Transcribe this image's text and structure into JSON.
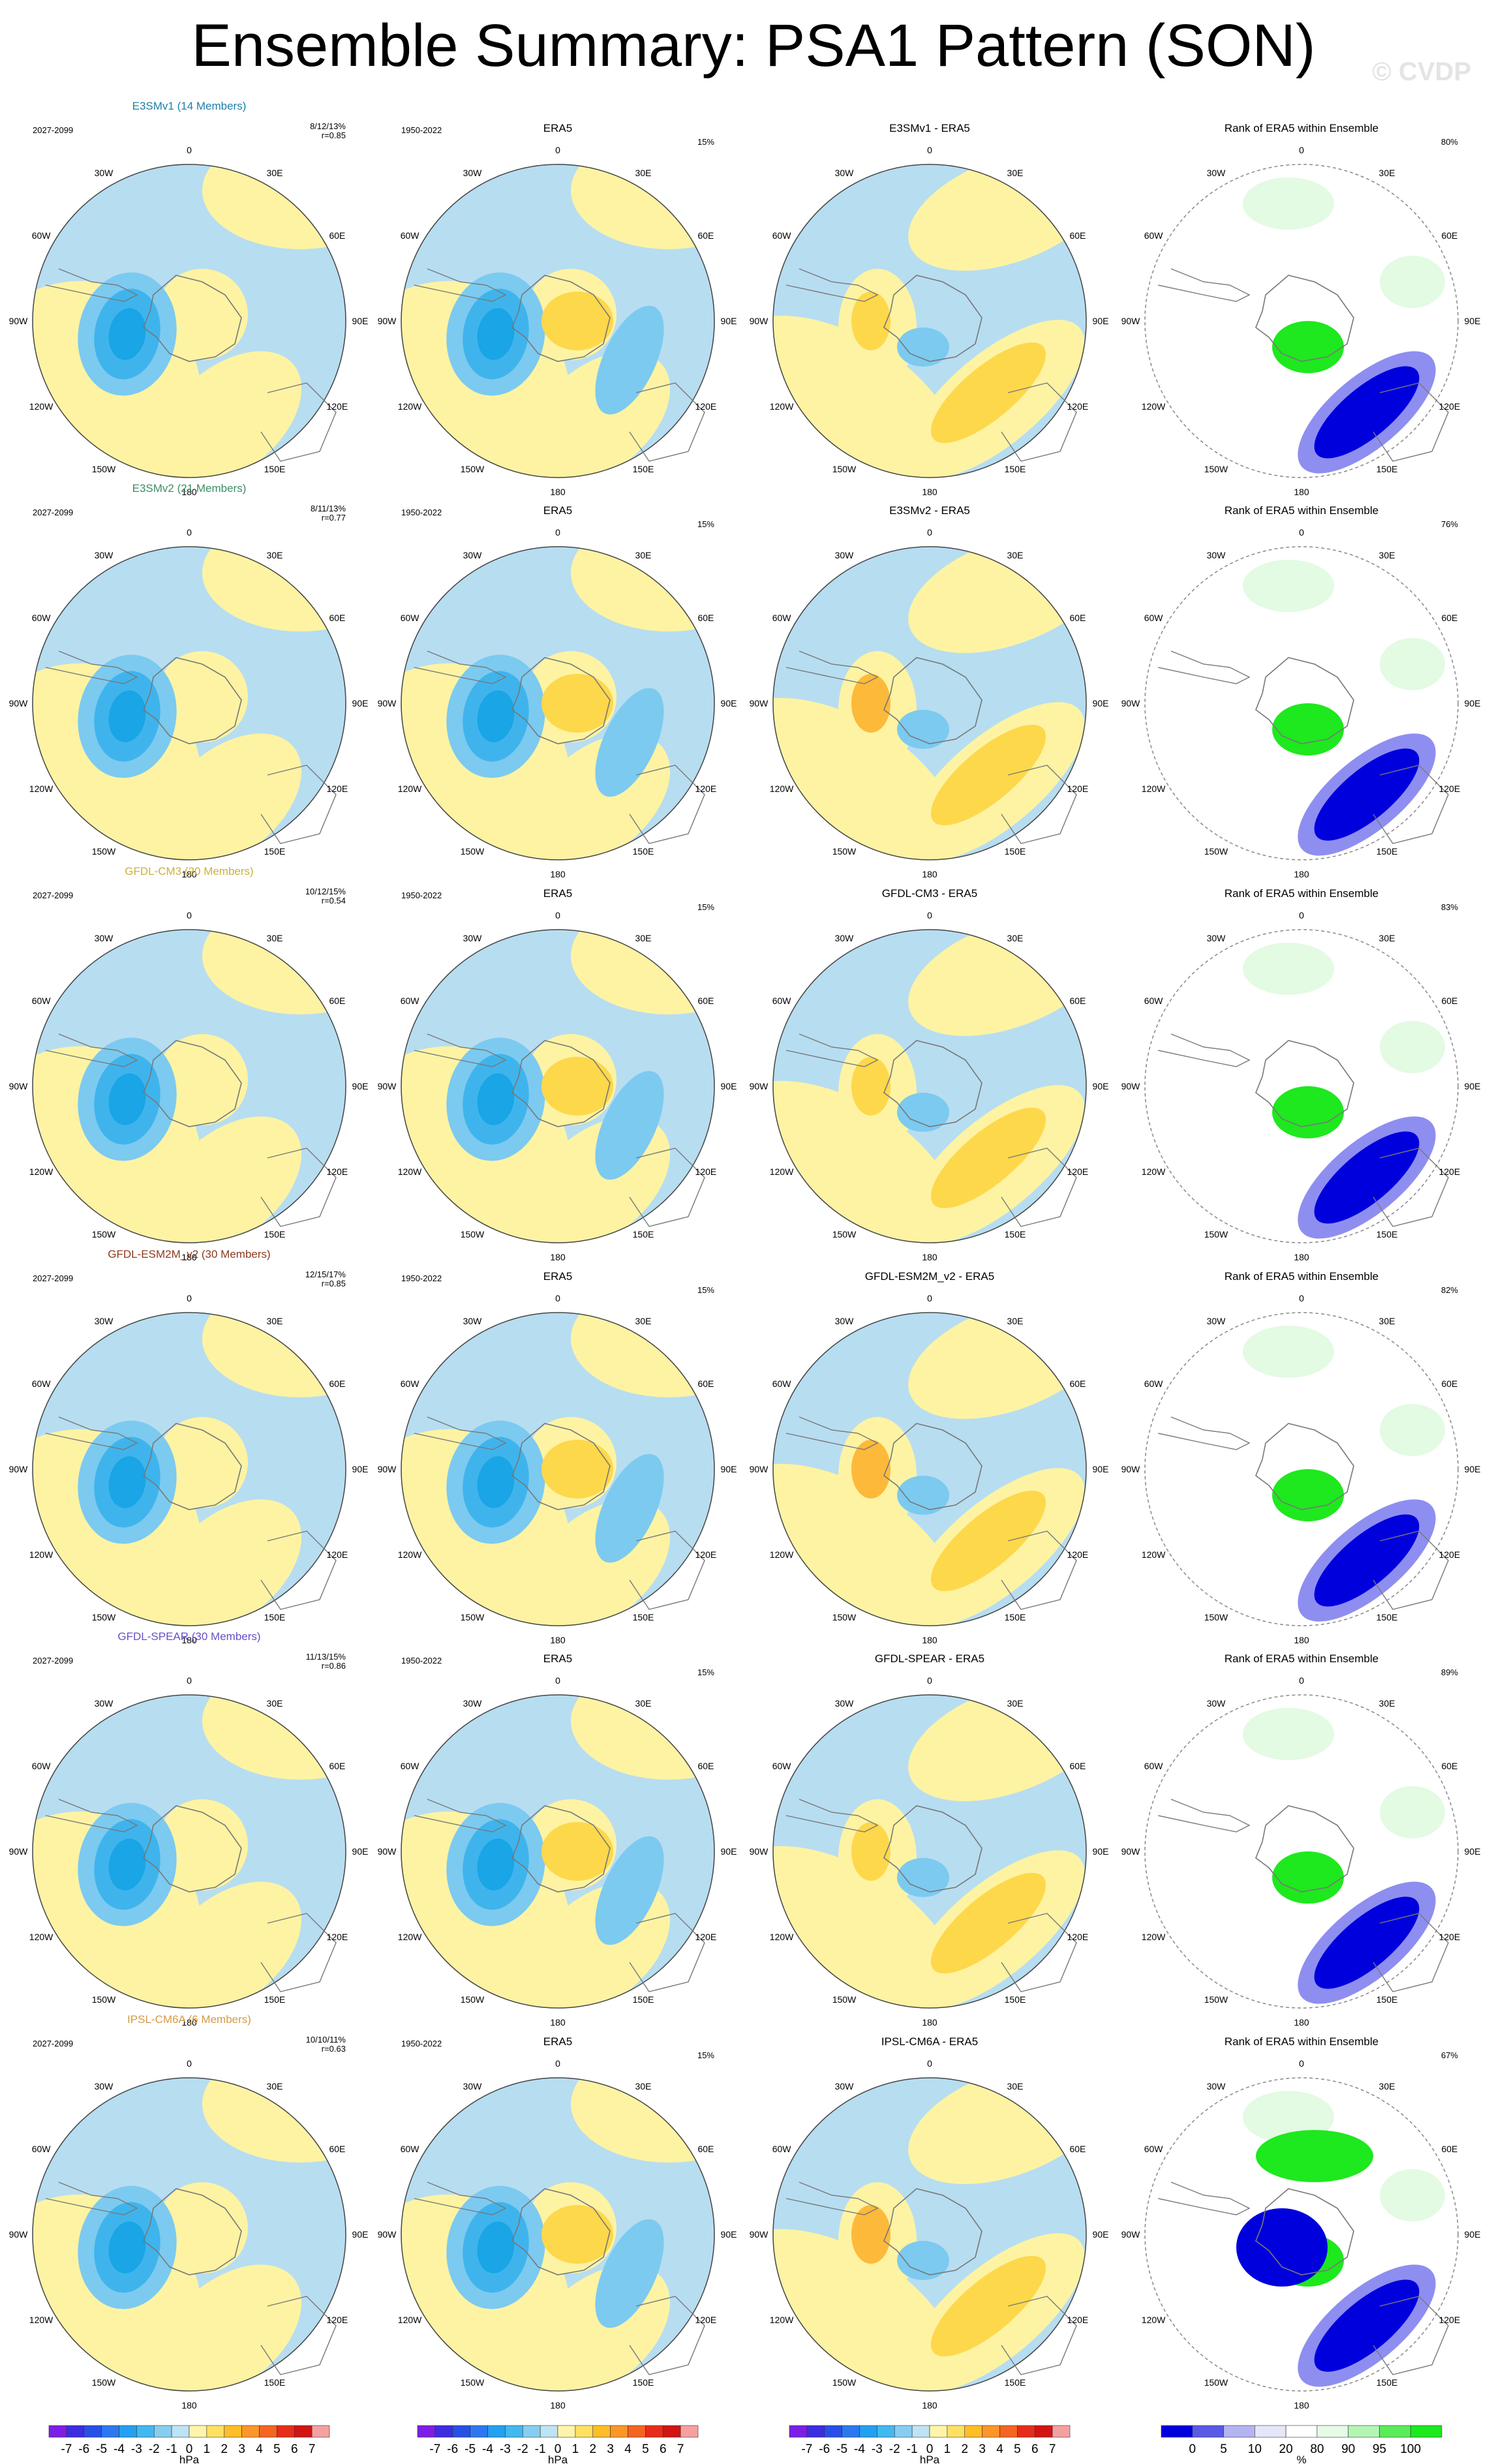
{
  "title": "Ensemble Summary: PSA1 Pattern (SON)",
  "watermark": "© CVDP",
  "lon_labels": [
    "0",
    "30E",
    "60E",
    "90E",
    "120E",
    "150E",
    "180",
    "150W",
    "120W",
    "90W",
    "60W",
    "30W"
  ],
  "era5_period": "1950-2022",
  "model_period": "2027-2099",
  "era5_pct": "15%",
  "era5_title": "ERA5",
  "rank_title": "Rank of ERA5 within Ensemble",
  "palette": {
    "ocean_neg": "#b7ddf1",
    "land_pos": "#fdf3a3",
    "neg2": "#7ccaf0",
    "neg3": "#3fb4ec",
    "neg4": "#19a5e6",
    "pos2": "#fed84b",
    "pos3": "#fdb93a",
    "pos4": "#f4862a",
    "rank_blue": "#0000dd",
    "rank_lightblue": "#8e8ef0",
    "rank_paleblue": "#dcdcf8",
    "rank_green": "#1ee81e",
    "rank_lightgreen": "#a8f2a8",
    "rank_palegreen": "#e3fae3"
  },
  "rows": [
    {
      "model": "E3SMv1 (14 Members)",
      "model_color": "#1b7fa8",
      "diff_title": "E3SMv1 - ERA5",
      "stats": "8/12/13%",
      "corr": "r=0.85",
      "rank_pct": "80%"
    },
    {
      "model": "E3SMv2 (21 Members)",
      "model_color": "#3c8c64",
      "diff_title": "E3SMv2 - ERA5",
      "stats": "8/11/13%",
      "corr": "r=0.77",
      "rank_pct": "76%"
    },
    {
      "model": "GFDL-CM3 (20 Members)",
      "model_color": "#c9b23c",
      "diff_title": "GFDL-CM3 - ERA5",
      "stats": "10/12/15%",
      "corr": "r=0.54",
      "rank_pct": "83%"
    },
    {
      "model": "GFDL-ESM2M_v2 (30 Members)",
      "model_color": "#8b3a1e",
      "diff_title": "GFDL-ESM2M_v2 - ERA5",
      "stats": "12/15/17%",
      "corr": "r=0.85",
      "rank_pct": "82%"
    },
    {
      "model": "GFDL-SPEAR (30 Members)",
      "model_color": "#6a4fc8",
      "diff_title": "GFDL-SPEAR - ERA5",
      "stats": "11/13/15%",
      "corr": "r=0.86",
      "rank_pct": "89%"
    },
    {
      "model": "IPSL-CM6A (6 Members)",
      "model_color": "#d59a45",
      "diff_title": "IPSL-CM6A - ERA5",
      "stats": "10/10/11%",
      "corr": "r=0.63",
      "rank_pct": "67%"
    }
  ],
  "colorbar_slp": {
    "labels": [
      "-7",
      "-6",
      "-5",
      "-4",
      "-3",
      "-2",
      "-1",
      "0",
      "1",
      "2",
      "3",
      "4",
      "5",
      "6",
      "7"
    ],
    "colors": [
      "#7d1ee6",
      "#3c2de0",
      "#2850e6",
      "#2d78f0",
      "#23a0f0",
      "#41b9f0",
      "#87cdf0",
      "#bde3f5",
      "#fff5aa",
      "#fee164",
      "#fdbe28",
      "#fd9628",
      "#f56423",
      "#e62d19",
      "#d21414",
      "#f5a0a0"
    ],
    "unit": "hPa"
  },
  "colorbar_rank": {
    "labels": [
      "0",
      "5",
      "10",
      "20",
      "80",
      "90",
      "95",
      "100"
    ],
    "colors": [
      "#0000dd",
      "#5a5ae6",
      "#b4b4f2",
      "#e6e6fa",
      "#ffffff",
      "#e6fae6",
      "#b4f5b4",
      "#5aeb5a",
      "#1ee81e"
    ],
    "unit": "%"
  }
}
